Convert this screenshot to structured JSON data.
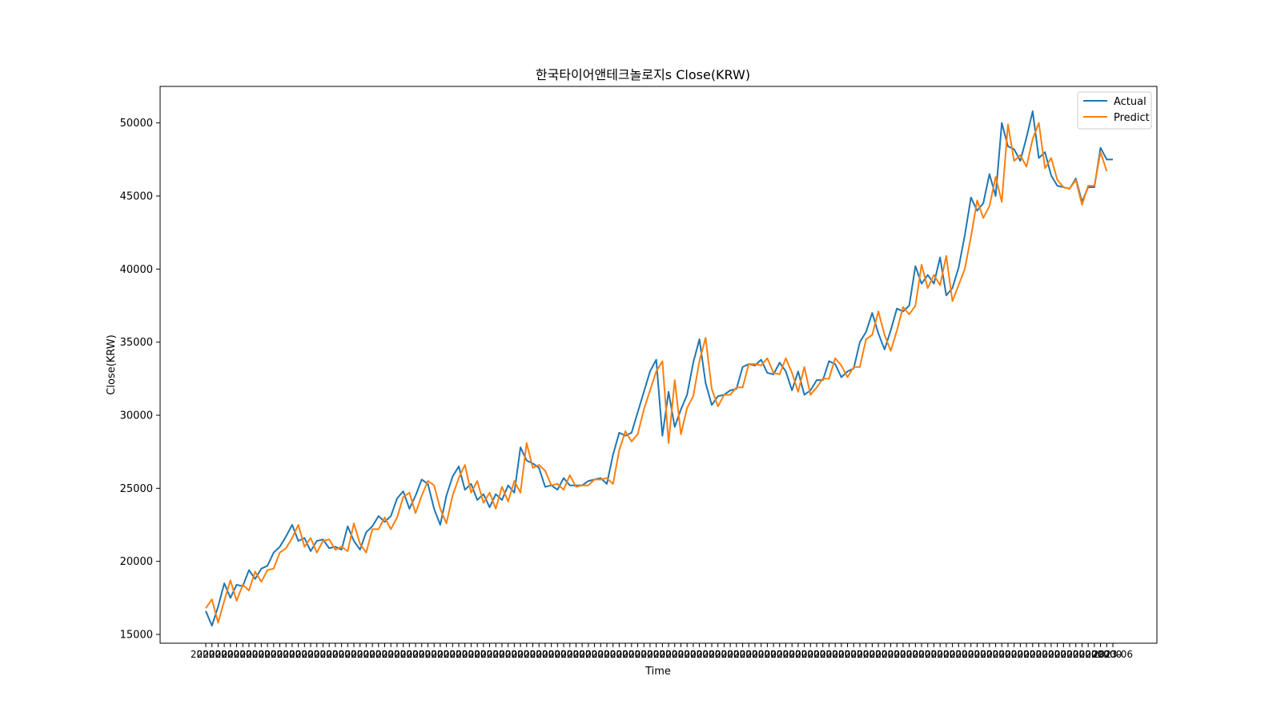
{
  "chart_data": {
    "type": "line",
    "title": "한국타이어앤테크놀로지s Close(KRW)",
    "xlabel": "Time",
    "ylabel": "Close(KRW)",
    "ylim": [
      14400,
      52500
    ],
    "yticks": [
      15000,
      20000,
      25000,
      30000,
      35000,
      40000,
      45000,
      50000
    ],
    "ytick_labels": [
      "15000",
      "20000",
      "25000",
      "30000",
      "35000",
      "40000",
      "45000",
      "50000"
    ],
    "x_tick_label_sample": "20200",
    "x_last_tick_label": "2023-06",
    "grid": false,
    "legend_position": "top-right",
    "colors": {
      "Actual": "#1f77b4",
      "Predict": "#ff7f0e"
    },
    "series": [
      {
        "name": "Actual",
        "values": [
          16600,
          15600,
          16900,
          18500,
          17500,
          18400,
          18300,
          19400,
          18800,
          19500,
          19700,
          20600,
          21000,
          21700,
          22500,
          21400,
          21600,
          20700,
          21400,
          21500,
          20900,
          21000,
          20800,
          22400,
          21400,
          20800,
          22000,
          22400,
          23100,
          22700,
          23100,
          24300,
          24800,
          23600,
          24500,
          25600,
          25300,
          23600,
          22500,
          24500,
          25800,
          26500,
          24900,
          25300,
          24200,
          24600,
          23700,
          24600,
          24200,
          25200,
          24700,
          27800,
          26900,
          26700,
          26400,
          25100,
          25200,
          24900,
          25700,
          25200,
          25200,
          25200,
          25500,
          25600,
          25700,
          25300,
          27300,
          28800,
          28600,
          28800,
          30200,
          31600,
          33000,
          33800,
          28600,
          31600,
          29200,
          30400,
          31400,
          33600,
          35200,
          32200,
          30700,
          31300,
          31400,
          31700,
          31800,
          33300,
          33500,
          33400,
          33800,
          32900,
          32800,
          33600,
          33000,
          31700,
          33000,
          31400,
          31700,
          32400,
          32400,
          33700,
          33500,
          32600,
          33000,
          33200,
          35000,
          35700,
          37000,
          35600,
          34500,
          35800,
          37300,
          37100,
          37500,
          40200,
          39000,
          39600,
          39000,
          40800,
          38200,
          38700,
          40100,
          42300,
          44900,
          44000,
          44500,
          46500,
          45000,
          50000,
          48400,
          48200,
          47400,
          49000,
          50800,
          47600,
          48000,
          46400,
          45700,
          45600,
          45500,
          46200,
          44600,
          45600,
          45600,
          48300,
          47500,
          47500
        ]
      },
      {
        "name": "Predict",
        "values": [
          16800,
          17400,
          15800,
          17300,
          18700,
          17300,
          18400,
          18000,
          19300,
          18600,
          19400,
          19500,
          20600,
          20900,
          21600,
          22500,
          21000,
          21600,
          20600,
          21400,
          21500,
          20800,
          21000,
          20700,
          22600,
          21200,
          20600,
          22200,
          22200,
          23000,
          22200,
          23000,
          24400,
          24700,
          23300,
          24500,
          25500,
          25200,
          23600,
          22600,
          24500,
          25700,
          26600,
          24700,
          25500,
          24000,
          24700,
          23600,
          25100,
          24100,
          25500,
          24700,
          28100,
          26400,
          26600,
          26200,
          25200,
          25300,
          24900,
          25900,
          25100,
          25200,
          25200,
          25600,
          25600,
          25700,
          25300,
          27600,
          28900,
          28200,
          28700,
          30400,
          31700,
          33000,
          33700,
          28100,
          32400,
          28700,
          30500,
          31300,
          33700,
          35300,
          31800,
          30600,
          31400,
          31400,
          31900,
          31900,
          33500,
          33500,
          33400,
          33900,
          32900,
          32800,
          33900,
          32900,
          31600,
          33300,
          31400,
          31900,
          32500,
          32500,
          33900,
          33400,
          32600,
          33300,
          33300,
          35200,
          35500,
          37100,
          35500,
          34400,
          35800,
          37400,
          36900,
          37500,
          40300,
          38700,
          39600,
          38900,
          40900,
          37800,
          38900,
          40000,
          42200,
          44700,
          43500,
          44300,
          46300,
          44600,
          49900,
          47400,
          47800,
          47000,
          48900,
          50000,
          46900,
          47600,
          46100,
          45600,
          45500,
          46100,
          44400,
          45700,
          45700,
          48000,
          46700
        ]
      }
    ]
  }
}
